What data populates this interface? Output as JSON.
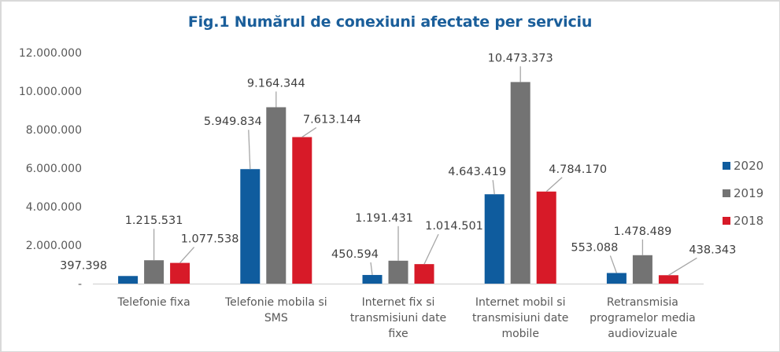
{
  "chart_data": {
    "type": "bar",
    "title": "Fig.1 Numărul de conexiuni afectate per serviciu",
    "xlabel": "",
    "ylabel": "",
    "ylim": [
      0,
      12000000
    ],
    "yticks": [
      0,
      2000000,
      4000000,
      6000000,
      8000000,
      10000000,
      12000000
    ],
    "ytick_labels": [
      "-",
      "2.000.000",
      "4.000.000",
      "6.000.000",
      "8.000.000",
      "10.000.000",
      "12.000.000"
    ],
    "grid": false,
    "legend_position": "right",
    "categories": [
      [
        "Telefonie fixa"
      ],
      [
        "Telefonie mobila si",
        "SMS"
      ],
      [
        "Internet fix si",
        "transmisiuni date",
        "fixe"
      ],
      [
        "Internet mobil si",
        "transmisiuni date",
        "mobile"
      ],
      [
        "Retransmisia",
        "programelor media",
        "audiovizuale"
      ]
    ],
    "series": [
      {
        "name": "2020",
        "color": "#0f5c9e",
        "values": [
          397398,
          5949834,
          450594,
          4643419,
          553088
        ],
        "labels": [
          "397.398",
          "5.949.834",
          "450.594",
          "4.643.419",
          "553.088"
        ]
      },
      {
        "name": "2019",
        "color": "#737373",
        "values": [
          1215531,
          9164344,
          1191431,
          10473373,
          1478489
        ],
        "labels": [
          "1.215.531",
          "9.164.344",
          "1.191.431",
          "10.473.373",
          "1.478.489"
        ]
      },
      {
        "name": "2018",
        "color": "#d71a28",
        "values": [
          1077538,
          7613144,
          1014501,
          4784170,
          438343
        ],
        "labels": [
          "1.077.538",
          "7.613.144",
          "1.014.501",
          "4.784.170",
          "438.343"
        ]
      }
    ]
  }
}
